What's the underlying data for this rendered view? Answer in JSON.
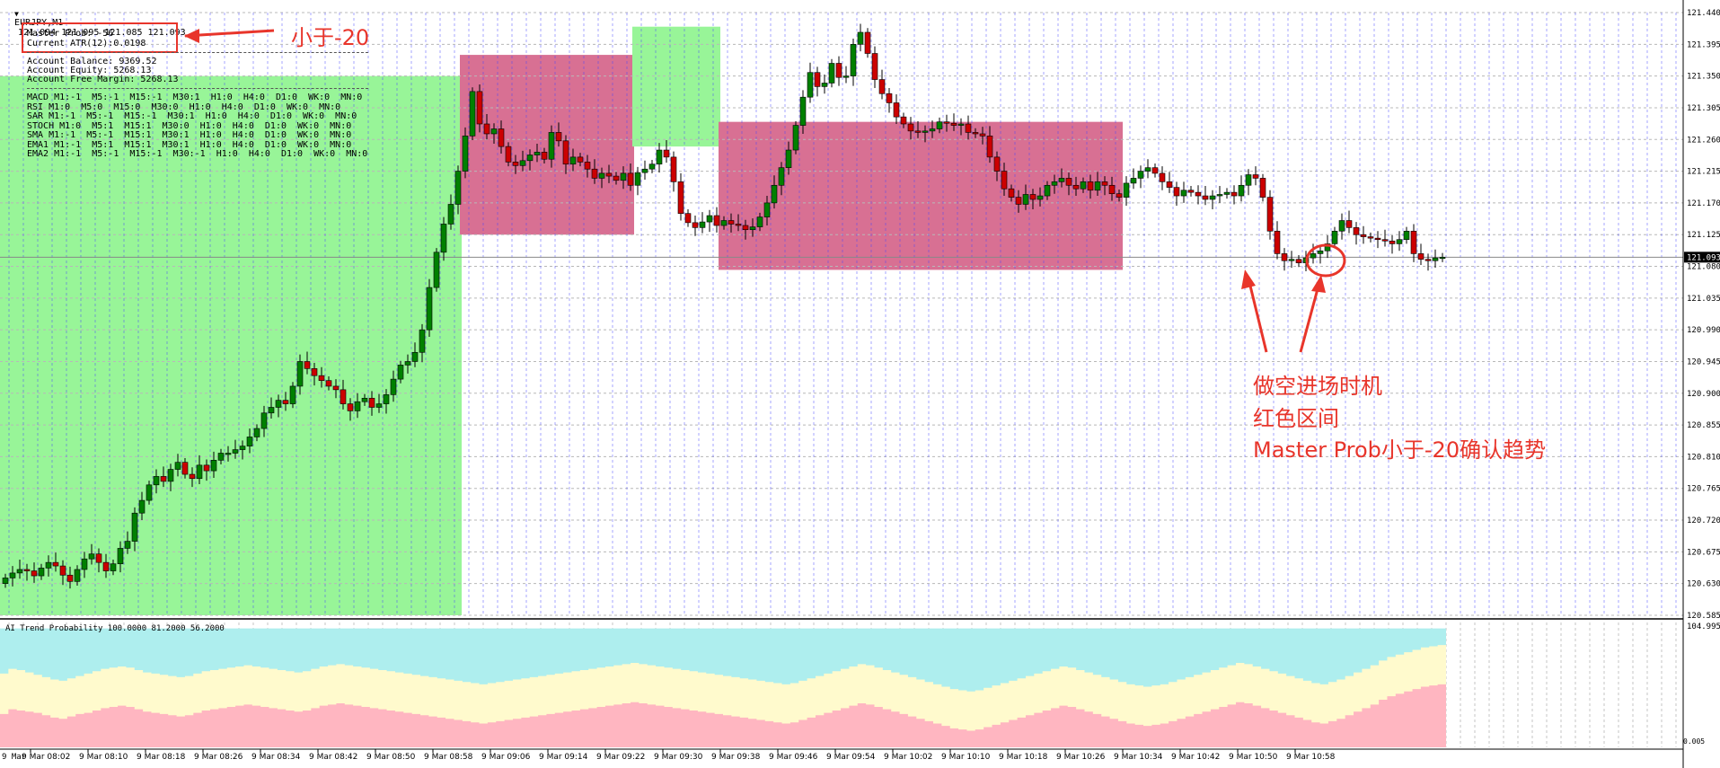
{
  "header": {
    "symbol": "EURJPY,M1",
    "ohlc": "121.094 121.095 121.085 121.093"
  },
  "hud": {
    "master_prob": "Master Prob: -56",
    "current_atr": "Current ATR(12):0.0198",
    "account_balance": "Account Balance: 9369.52",
    "account_equity": "Account Equity: 5268.13",
    "account_free_margin": "Account Free Margin: 5268.13",
    "signals": [
      "MACD M1:-1  M5:-1  M15:-1  M30:1  H1:0  H4:0  D1:0  WK:0  MN:0",
      "RSI M1:0  M5:0  M15:0  M30:0  H1:0  H4:0  D1:0  WK:0  MN:0",
      "SAR M1:-1  M5:-1  M15:-1  M30:1  H1:0  H4:0  D1:0  WK:0  MN:0",
      "STOCH M1:0  M5:1  M15:1  M30:0  H1:0  H4:0  D1:0  WK:0  MN:0",
      "SMA M1:-1  M5:-1  M15:1  M30:1  H1:0  H4:0  D1:0  WK:0  MN:0",
      "EMA1 M1:-1  M5:1  M15:1  M30:1  H1:0  H4:0  D1:0  WK:0  MN:0",
      "EMA2 M1:-1  M5:-1  M15:-1  M30:-1  H1:0  H4:0  D1:0  WK:0  MN:0"
    ]
  },
  "annotations": {
    "less_than": "小于-20",
    "line1": "做空进场时机",
    "line2": "红色区间",
    "line3": "Master Prob小于-20确认趋势"
  },
  "indicator": {
    "title": "AI Trend Probability 100.0000 81.2000 56.2000",
    "axis_top": "104.995",
    "axis_bottom": "0.005"
  },
  "corner_label": "9 Mar",
  "colors": {
    "bull": "#008000",
    "bear": "#cc0000",
    "grid": "#b8b8b8",
    "vgrid": "#4444ff",
    "green_zone": "#98f598",
    "red_zone": "#d87093",
    "cyan": "#aeeeee",
    "yellow": "#fffacd",
    "pink": "#ffb6c1",
    "annot": "#e8352b"
  },
  "chart_data": {
    "type": "candlestick",
    "symbol": "EURJPY,M1",
    "ylim": [
      120.585,
      121.44
    ],
    "current_price": 121.093,
    "y_ticks": [
      "121.440",
      "121.395",
      "121.350",
      "121.305",
      "121.260",
      "121.215",
      "121.170",
      "121.125",
      "121.080",
      "121.035",
      "120.990",
      "120.945",
      "120.900",
      "120.855",
      "120.810",
      "120.765",
      "120.720",
      "120.675",
      "120.630",
      "120.585"
    ],
    "x_ticks": [
      "9 Mar 08:02",
      "9 Mar 08:10",
      "9 Mar 08:18",
      "9 Mar 08:26",
      "9 Mar 08:34",
      "9 Mar 08:42",
      "9 Mar 08:50",
      "9 Mar 08:58",
      "9 Mar 09:06",
      "9 Mar 09:14",
      "9 Mar 09:22",
      "9 Mar 09:30",
      "9 Mar 09:38",
      "9 Mar 09:46",
      "9 Mar 09:54",
      "9 Mar 10:02",
      "9 Mar 10:10",
      "9 Mar 10:18",
      "9 Mar 10:26",
      "9 Mar 10:34",
      "9 Mar 10:42",
      "9 Mar 10:50",
      "9 Mar 10:58"
    ],
    "first_bar_time": "9 Mar 07:59",
    "closes": [
      120.638,
      120.645,
      120.65,
      120.648,
      120.641,
      120.652,
      120.66,
      120.655,
      120.642,
      120.633,
      120.65,
      120.665,
      120.672,
      120.66,
      120.648,
      120.658,
      120.68,
      120.69,
      120.73,
      120.748,
      120.77,
      120.782,
      120.775,
      120.792,
      120.802,
      120.785,
      120.779,
      120.798,
      120.79,
      120.805,
      120.815,
      120.815,
      120.82,
      120.825,
      120.838,
      120.85,
      120.872,
      120.88,
      120.89,
      120.885,
      120.91,
      120.945,
      120.935,
      120.925,
      120.918,
      120.91,
      120.905,
      120.885,
      120.875,
      120.888,
      120.893,
      120.88,
      120.885,
      120.898,
      120.92,
      120.94,
      120.945,
      120.958,
      120.99,
      121.05,
      121.1,
      121.14,
      121.168,
      121.215,
      121.265,
      121.328,
      121.282,
      121.268,
      121.275,
      121.25,
      121.228,
      121.223,
      121.23,
      121.238,
      121.242,
      121.232,
      121.27,
      121.258,
      121.225,
      121.235,
      121.228,
      121.218,
      121.205,
      121.212,
      121.208,
      121.202,
      121.212,
      121.195,
      121.213,
      121.218,
      121.225,
      121.245,
      121.235,
      121.2,
      121.155,
      121.142,
      121.135,
      121.143,
      121.152,
      121.138,
      121.145,
      121.14,
      121.138,
      121.132,
      121.136,
      121.15,
      121.17,
      121.195,
      121.22,
      121.245,
      121.28,
      121.32,
      121.355,
      121.335,
      121.34,
      121.368,
      121.348,
      121.35,
      121.395,
      121.412,
      121.382,
      121.345,
      121.325,
      121.312,
      121.292,
      121.282,
      121.272,
      121.27,
      121.272,
      121.275,
      121.285,
      121.283,
      121.28,
      121.282,
      121.27,
      121.268,
      121.265,
      121.235,
      121.215,
      121.19,
      121.178,
      121.168,
      121.182,
      121.175,
      121.18,
      121.195,
      121.2,
      121.205,
      121.195,
      121.19,
      121.2,
      121.188,
      121.2,
      121.195,
      121.183,
      121.178,
      121.198,
      121.205,
      121.215,
      121.22,
      121.212,
      121.2,
      121.192,
      121.18,
      121.188,
      121.185,
      121.18,
      121.175,
      121.18,
      121.182,
      121.185,
      121.18,
      121.195,
      121.21,
      121.205,
      121.178,
      121.13,
      121.098,
      121.088,
      121.09,
      121.085,
      121.092,
      121.098,
      121.102,
      121.112,
      121.13,
      121.145,
      121.135,
      121.125,
      121.122,
      121.12,
      121.118,
      121.116,
      121.112,
      121.118,
      121.13,
      121.098,
      121.09,
      121.088,
      121.092,
      121.093
    ],
    "highlight_zones": [
      {
        "color": "green",
        "bars": [
          0,
          63
        ],
        "price": [
          120.585,
          121.35
        ]
      },
      {
        "color": "red",
        "bars": [
          64,
          87
        ],
        "price": [
          121.125,
          121.38
        ]
      },
      {
        "color": "green",
        "bars": [
          88,
          99
        ],
        "price": [
          121.25,
          121.42
        ]
      },
      {
        "color": "red",
        "bars": [
          100,
          155
        ],
        "price": [
          121.075,
          121.285
        ]
      }
    ],
    "indicator": {
      "name": "AI Trend Probability",
      "ylim": [
        0.005,
        104.995
      ],
      "pink_yellow_boundary": [
        28,
        32,
        31,
        30,
        29,
        27,
        25,
        24,
        26,
        28,
        29,
        31,
        33,
        34,
        35,
        34,
        32,
        30,
        29,
        28,
        27,
        26,
        27,
        29,
        31,
        32,
        33,
        34,
        35,
        36,
        35,
        34,
        33,
        32,
        31,
        30,
        31,
        33,
        35,
        36,
        37,
        36,
        35,
        34,
        33,
        32,
        31,
        30,
        29,
        28,
        27,
        26,
        25,
        24,
        23,
        22,
        21,
        20,
        21,
        22,
        23,
        24,
        25,
        26,
        27,
        28,
        29,
        30,
        31,
        32,
        33,
        34,
        35,
        36,
        37,
        38,
        37,
        36,
        35,
        34,
        33,
        32,
        31,
        30,
        29,
        28,
        27,
        26,
        25,
        24,
        23,
        22,
        21,
        20,
        21,
        23,
        25,
        27,
        29,
        31,
        33,
        35,
        37,
        36,
        34,
        32,
        30,
        28,
        26,
        24,
        22,
        20,
        18,
        16,
        15,
        14,
        15,
        17,
        19,
        21,
        23,
        25,
        27,
        29,
        31,
        33,
        35,
        34,
        32,
        30,
        28,
        26,
        24,
        22,
        20,
        19,
        18,
        19,
        20,
        22,
        24,
        26,
        28,
        30,
        32,
        34,
        36,
        38,
        37,
        35,
        33,
        31,
        29,
        27,
        25,
        23,
        21,
        20,
        22,
        24,
        27,
        30,
        33,
        36,
        40,
        43,
        45,
        47,
        49,
        51,
        52,
        53
      ],
      "yellow_cyan_boundary": [
        62,
        66,
        65,
        63,
        61,
        59,
        57,
        56,
        58,
        60,
        62,
        64,
        66,
        67,
        68,
        67,
        65,
        63,
        62,
        61,
        60,
        59,
        60,
        62,
        64,
        65,
        66,
        67,
        68,
        69,
        68,
        67,
        66,
        65,
        64,
        63,
        64,
        66,
        68,
        69,
        70,
        69,
        68,
        67,
        66,
        65,
        64,
        63,
        62,
        61,
        60,
        59,
        58,
        57,
        56,
        55,
        54,
        53,
        54,
        55,
        56,
        57,
        58,
        59,
        60,
        61,
        62,
        63,
        64,
        65,
        66,
        67,
        68,
        69,
        70,
        71,
        70,
        69,
        68,
        67,
        66,
        65,
        64,
        63,
        62,
        61,
        60,
        59,
        58,
        57,
        56,
        55,
        54,
        53,
        54,
        56,
        58,
        60,
        62,
        64,
        66,
        68,
        70,
        69,
        67,
        65,
        63,
        61,
        59,
        57,
        55,
        53,
        51,
        49,
        48,
        47,
        48,
        50,
        52,
        54,
        56,
        58,
        60,
        62,
        64,
        66,
        68,
        67,
        65,
        63,
        61,
        59,
        57,
        55,
        53,
        52,
        51,
        52,
        53,
        55,
        57,
        59,
        61,
        63,
        65,
        67,
        69,
        71,
        70,
        68,
        66,
        64,
        62,
        60,
        58,
        56,
        54,
        53,
        55,
        57,
        60,
        63,
        66,
        69,
        73,
        76,
        78,
        80,
        82,
        84,
        85,
        86
      ]
    }
  }
}
